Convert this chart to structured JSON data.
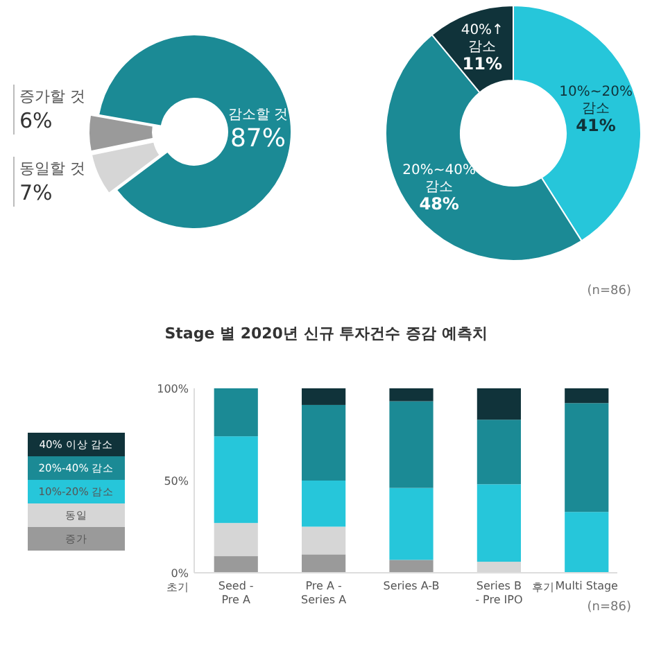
{
  "chart_data": [
    {
      "type": "donut",
      "categories": [
        "감소할 것",
        "동일할 것",
        "증가할 것"
      ],
      "values": [
        87,
        7,
        6
      ],
      "colors": [
        "#1b8a95",
        "#d6d6d6",
        "#9a9a9a"
      ],
      "value_labels": [
        "87%",
        "7%",
        "6%"
      ]
    },
    {
      "type": "donut",
      "categories": [
        "10%~20%\n감소",
        "20%~40%\n감소",
        "40%↑\n감소"
      ],
      "values": [
        41,
        48,
        11
      ],
      "colors": [
        "#26c6da",
        "#1b8a95",
        "#10333a"
      ],
      "value_labels": [
        "41%",
        "48%",
        "11%"
      ],
      "annotations": [
        "(n=86)"
      ]
    },
    {
      "type": "bar",
      "title": "Stage 별 2020년 신규 투자건수 증감 예측치",
      "categories": [
        "Seed -\nPre A",
        "Pre A -\nSeries A",
        "Series A-B",
        "Series B\n- Pre IPO",
        "Multi Stage"
      ],
      "stacked": true,
      "legend": "left",
      "ylim": [
        0,
        100
      ],
      "yticks": [
        {
          "value": 0,
          "label": "0%"
        },
        {
          "value": 50,
          "label": "50%"
        },
        {
          "value": 100,
          "label": "100%"
        }
      ],
      "series": [
        {
          "name": "증가",
          "color": "#9a9a9a",
          "values": [
            9,
            10,
            7,
            0,
            0
          ]
        },
        {
          "name": "동일",
          "color": "#d6d6d6",
          "values": [
            18,
            15,
            0,
            6,
            0
          ]
        },
        {
          "name": "10%-20% 감소",
          "color": "#26c6da",
          "values": [
            47,
            25,
            39,
            42,
            33
          ]
        },
        {
          "name": "20%-40% 감소",
          "color": "#1b8a95",
          "values": [
            26,
            41,
            47,
            35,
            59
          ]
        },
        {
          "name": "40% 이상 감소",
          "color": "#10333a",
          "values": [
            0,
            9,
            7,
            17,
            8
          ]
        }
      ],
      "annotations": [
        "초기",
        "후기",
        "(n=86)"
      ]
    }
  ]
}
